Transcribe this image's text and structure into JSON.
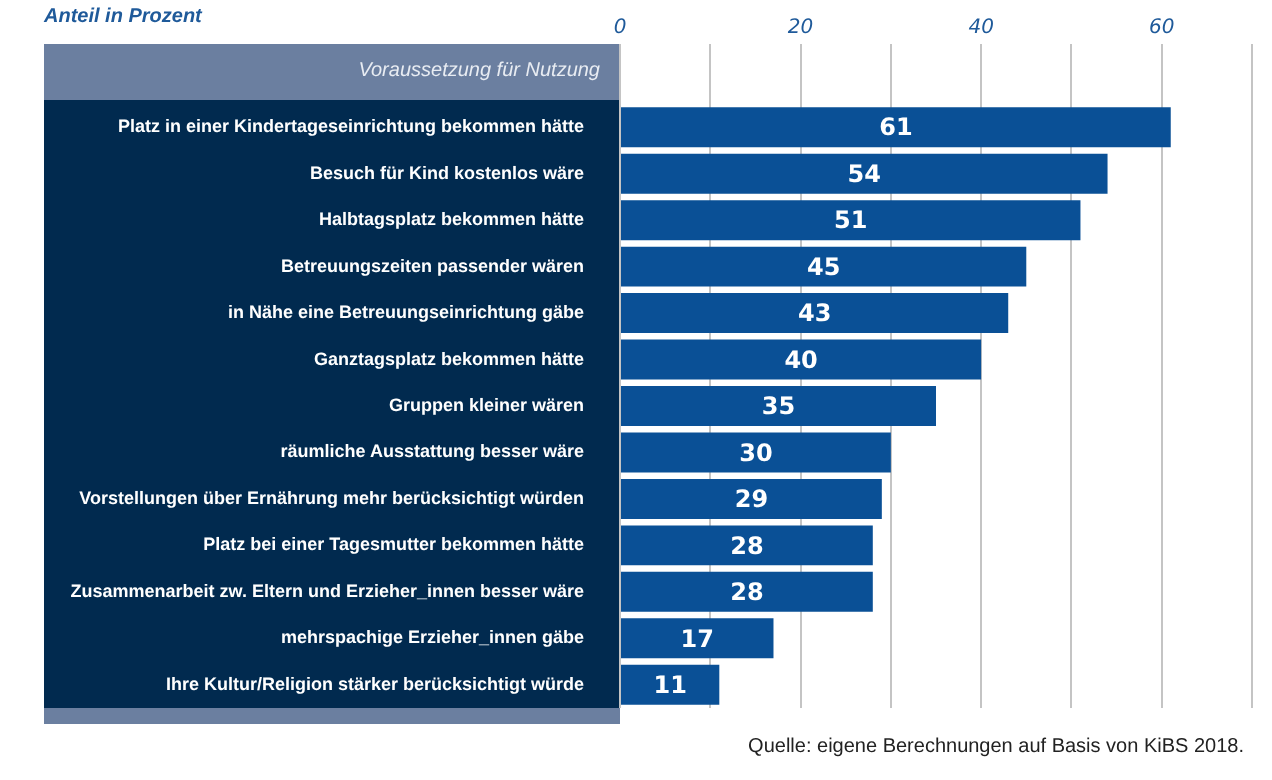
{
  "chart_data": {
    "type": "bar",
    "orientation": "horizontal",
    "xlabel": "Anteil in Prozent",
    "categories": [
      "Platz in einer Kindertageseinrichtung bekommen hätte",
      "Besuch für Kind kostenlos wäre",
      "Halbtagsplatz bekommen hätte",
      "Betreuungszeiten passender wären",
      "in Nähe eine Betreuungseinrichtung gäbe",
      "Ganztagsplatz bekommen hätte",
      "Gruppen kleiner wären",
      "räumliche Ausstattung besser wäre",
      "Vorstellungen über Ernährung mehr berücksichtigt würden",
      "Platz bei einer Tagesmutter bekommen hätte",
      "Zusammenarbeit zw. Eltern und Erzieher_innen besser wäre",
      "mehrspachige Erzieher_innen gäbe",
      "Ihre Kultur/Religion stärker berücksichtigt würde"
    ],
    "values": [
      61,
      54,
      51,
      45,
      43,
      40,
      35,
      30,
      29,
      28,
      28,
      17,
      11
    ],
    "color": "#0a5096",
    "xlim": [
      0,
      70
    ],
    "xticks": [
      0,
      {
        "value": 10,
        "label": null
      },
      20,
      {
        "value": 30,
        "label": null
      },
      40,
      {
        "value": 50,
        "label": null
      },
      60,
      {
        "value": 70,
        "label": null
      }
    ],
    "grid": "x",
    "data_labels": true,
    "legend": false,
    "annotations": [
      "Voraussetzung für Nutzung",
      "Quelle: eigene Berechnungen auf Basis von KiBS 2018."
    ]
  }
}
